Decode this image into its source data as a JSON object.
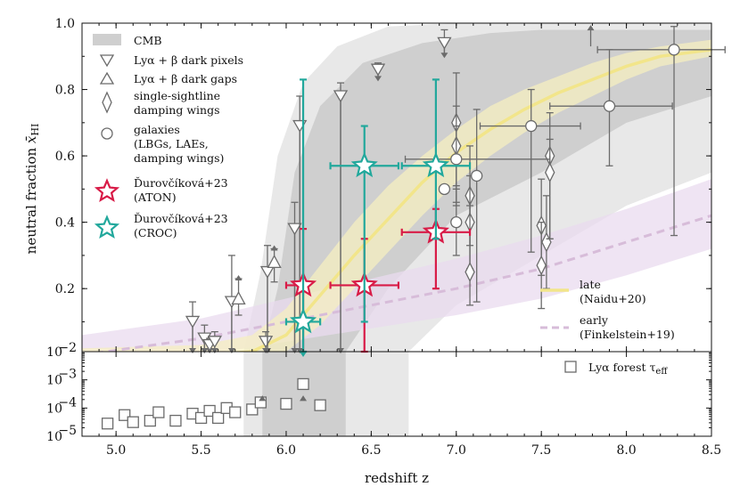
{
  "chart_data": {
    "type": "scatter",
    "title": "",
    "xlabel": "redshift z",
    "ylabel_top": "neutral fraction x̄HI",
    "ylabel_top_main": "neutral fraction ",
    "ylabel_top_sym": "x̄",
    "ylabel_top_sub": "HI",
    "xlim": [
      4.8,
      8.5
    ],
    "top_ylim": [
      0.01,
      1.0
    ],
    "bottom_ylim_log10": [
      -5,
      -2
    ],
    "x_ticks": [
      5.0,
      5.5,
      6.0,
      6.5,
      7.0,
      7.5,
      8.0,
      8.5
    ],
    "x_tick_labels": [
      "5.0",
      "5.5",
      "6.0",
      "6.5",
      "7.0",
      "7.5",
      "8.0",
      "8.5"
    ],
    "top_y_ticks": [
      0.01,
      0.2,
      0.4,
      0.6,
      0.8,
      1.0
    ],
    "top_y_tick_labels": [
      "10",
      "0.2",
      "0.4",
      "0.6",
      "0.8",
      "1.0"
    ],
    "top_y_tick_exps": [
      "−2",
      "",
      "",
      "",
      "",
      ""
    ],
    "bottom_y_ticks": [
      -3,
      -4,
      -5
    ],
    "bottom_y_tick_labels": [
      "10",
      "10",
      "10"
    ],
    "bottom_y_tick_exps": [
      "−3",
      "−4",
      "−5"
    ],
    "colors": {
      "cmb_outer": "#e8e8e8",
      "cmb_inner": "#cfcfcf",
      "data_grey": "#6b6b6b",
      "aton": "#d81b47",
      "croc": "#22a89c",
      "late_line": "#f2e58a",
      "late_band": "#f5efc0",
      "early_line": "#d7bcd9",
      "early_band": "#eadbef"
    },
    "legend": {
      "cmb": "CMB",
      "dark_pixels": "Lyα + β dark pixels",
      "dark_gaps": "Lyα + β dark gaps",
      "sightline_1": "single-sightline",
      "sightline_2": "damping wings",
      "galaxies_1": "galaxies",
      "galaxies_2": "(LBGs, LAEs,",
      "galaxies_3": "damping wings)",
      "aton_1": "Ďurovčíková+23",
      "aton_2": "(ATON)",
      "croc_1": "Ďurovčíková+23",
      "croc_2": "(CROC)",
      "late_1": "late",
      "late_2": "(Naidu+20)",
      "early_1": "early",
      "early_2": "(Finkelstein+19)",
      "forest_main": "Lyα forest τ",
      "forest_sub": "eff"
    },
    "cmb_bands": {
      "outer_x": [
        5.75,
        6.72
      ],
      "inner_x": [
        5.86,
        6.35
      ]
    },
    "models": {
      "late": {
        "x": [
          4.8,
          5.5,
          5.8,
          6.0,
          6.2,
          6.4,
          6.6,
          6.8,
          7.0,
          7.2,
          7.4,
          7.6,
          7.8,
          8.0,
          8.2,
          8.5
        ],
        "y": [
          0.0,
          0.0,
          0.01,
          0.06,
          0.18,
          0.3,
          0.41,
          0.52,
          0.61,
          0.68,
          0.74,
          0.79,
          0.83,
          0.87,
          0.9,
          0.92
        ],
        "band_low": [
          0.0,
          0.0,
          0.0,
          0.01,
          0.09,
          0.2,
          0.31,
          0.42,
          0.52,
          0.6,
          0.67,
          0.73,
          0.78,
          0.83,
          0.87,
          0.9
        ],
        "band_high": [
          0.02,
          0.03,
          0.06,
          0.14,
          0.27,
          0.4,
          0.51,
          0.6,
          0.68,
          0.75,
          0.8,
          0.84,
          0.88,
          0.91,
          0.93,
          0.95
        ]
      },
      "early": {
        "x": [
          4.8,
          5.5,
          6.0,
          6.5,
          7.0,
          7.5,
          8.0,
          8.5
        ],
        "y": [
          0.0,
          0.05,
          0.1,
          0.15,
          0.2,
          0.26,
          0.34,
          0.42
        ],
        "band_low": [
          0.0,
          0.0,
          0.04,
          0.08,
          0.12,
          0.17,
          0.24,
          0.32
        ],
        "band_high": [
          0.06,
          0.11,
          0.17,
          0.23,
          0.29,
          0.36,
          0.44,
          0.53
        ]
      }
    },
    "series": [
      {
        "name": "dark pixels",
        "marker": "triangle-down",
        "points": [
          {
            "x": 5.45,
            "y": 0.1,
            "yerr": [
              0.09,
              0.06
            ],
            "upper_limit": true
          },
          {
            "x": 5.52,
            "y": 0.05,
            "yerr": [
              0.04,
              0.04
            ],
            "upper_limit": true
          },
          {
            "x": 5.55,
            "y": 0.03,
            "yerr": [
              0.02,
              0.02
            ],
            "upper_limit": true
          },
          {
            "x": 5.58,
            "y": 0.04,
            "yerr": [
              0.03,
              0.03
            ],
            "upper_limit": true
          },
          {
            "x": 5.68,
            "y": 0.16,
            "yerr": [
              0.15,
              0.14
            ],
            "upper_limit": true
          },
          {
            "x": 5.88,
            "y": 0.04,
            "yerr": [
              0.03,
              0.03
            ],
            "upper_limit": true
          },
          {
            "x": 5.89,
            "y": 0.25,
            "yerr": [
              0.24,
              0.08
            ],
            "upper_limit": true
          },
          {
            "x": 6.05,
            "y": 0.38,
            "yerr": [
              0.37,
              0.08
            ],
            "upper_limit": true
          },
          {
            "x": 6.08,
            "y": 0.69,
            "yerr": [
              0.68,
              0.09
            ],
            "upper_limit": true
          },
          {
            "x": 6.32,
            "y": 0.78,
            "yerr": [
              0.77,
              0.04
            ],
            "upper_limit": true
          },
          {
            "x": 6.54,
            "y": 0.86,
            "yerr": [
              0.03,
              0.02
            ],
            "upper_limit": true
          },
          {
            "x": 6.93,
            "y": 0.94,
            "yerr": [
              0.04,
              0.04
            ],
            "upper_limit": true
          }
        ]
      },
      {
        "name": "dark gaps",
        "marker": "triangle-up",
        "points": [
          {
            "x": 5.72,
            "y": 0.17,
            "yerr": [
              0.05,
              0.06
            ],
            "lower_limit": true
          },
          {
            "x": 5.93,
            "y": 0.28,
            "yerr": [
              0.06,
              0.04
            ],
            "lower_limit": true
          }
        ]
      },
      {
        "name": "single-sightline damping wings",
        "marker": "diamond",
        "points": [
          {
            "x": 7.0,
            "y": 0.7,
            "yerr": [
              0.19,
              0.15
            ]
          },
          {
            "x": 7.0,
            "y": 0.63,
            "yerr": [
              0.17,
              0.12
            ]
          },
          {
            "x": 7.08,
            "y": 0.48,
            "yerr": [
              0.15,
              0.15
            ]
          },
          {
            "x": 7.08,
            "y": 0.4,
            "yerr": [
              0.14,
              0.14
            ]
          },
          {
            "x": 7.08,
            "y": 0.25,
            "yerr": [
              0.1,
              0.2
            ]
          },
          {
            "x": 7.5,
            "y": 0.39,
            "yerr": [
              0.15,
              0.14
            ]
          },
          {
            "x": 7.53,
            "y": 0.34,
            "yerr": [
              0.14,
              0.14
            ]
          },
          {
            "x": 7.5,
            "y": 0.27,
            "yerr": [
              0.13,
              0.13
            ]
          },
          {
            "x": 7.55,
            "y": 0.6,
            "yerr": [
              0.25,
              0.13
            ]
          },
          {
            "x": 7.55,
            "y": 0.55,
            "yerr": [
              0.2,
              0.1
            ]
          }
        ]
      },
      {
        "name": "galaxies (LBGs, LAEs, damping wings)",
        "marker": "circle",
        "points": [
          {
            "x": 6.93,
            "y": 0.5,
            "yerr": [
              0.0,
              0.0
            ],
            "upper_limit": true
          },
          {
            "x": 7.0,
            "y": 0.59,
            "xerr": [
              0.3,
              0.55
            ],
            "yerr": [
              0.14,
              0.1
            ]
          },
          {
            "x": 7.0,
            "y": 0.4,
            "yerr": [
              0.1,
              0.1
            ]
          },
          {
            "x": 7.12,
            "y": 0.54,
            "yerr": [
              0.38,
              0.2
            ]
          },
          {
            "x": 7.44,
            "y": 0.69,
            "xerr": [
              0.3,
              0.29
            ],
            "yerr": [
              0.38,
              0.11
            ]
          },
          {
            "x": 7.9,
            "y": 0.75,
            "xerr": [
              0.35,
              0.37
            ],
            "yerr": [
              0.18,
              0.17
            ]
          },
          {
            "x": 8.28,
            "y": 0.92,
            "xerr": [
              0.45,
              0.3
            ],
            "yerr": [
              0.56,
              0.07
            ]
          },
          {
            "x": 7.79,
            "y": 0.93,
            "lower_limit": true
          }
        ]
      },
      {
        "name": "Ďurovčíková+23 (ATON)",
        "marker": "star",
        "color": "aton",
        "points": [
          {
            "x": 6.1,
            "y": 0.21,
            "xerr": [
              0.1,
              0.0
            ],
            "yerr": [
              0.2,
              0.17
            ]
          },
          {
            "x": 6.46,
            "y": 0.21,
            "xerr": [
              0.2,
              0.2
            ],
            "yerr": [
              0.2,
              0.14
            ]
          },
          {
            "x": 6.88,
            "y": 0.37,
            "xerr": [
              0.2,
              0.2
            ],
            "yerr": [
              0.17,
              0.07
            ]
          }
        ]
      },
      {
        "name": "Ďurovčíková+23 (CROC)",
        "marker": "star",
        "color": "croc",
        "points": [
          {
            "x": 6.1,
            "y": 0.1,
            "xerr": [
              0.1,
              0.1
            ],
            "yerr": [
              0.09,
              0.73
            ],
            "lower_arrow": true
          },
          {
            "x": 6.46,
            "y": 0.57,
            "xerr": [
              0.2,
              0.2
            ],
            "yerr": [
              0.47,
              0.12
            ]
          },
          {
            "x": 6.88,
            "y": 0.57,
            "xerr": [
              0.2,
              0.2
            ],
            "yerr": [
              0.22,
              0.26
            ]
          }
        ]
      }
    ],
    "lya_forest": {
      "name": "Lyα forest τeff",
      "marker": "square",
      "x": [
        4.95,
        5.05,
        5.1,
        5.2,
        5.25,
        5.35,
        5.45,
        5.5,
        5.55,
        5.6,
        5.65,
        5.7,
        5.8,
        5.85,
        6.0,
        6.1,
        6.2
      ],
      "y_log10": [
        -4.55,
        -4.25,
        -4.5,
        -4.45,
        -4.15,
        -4.45,
        -4.2,
        -4.35,
        -4.1,
        -4.35,
        -4.0,
        -4.15,
        -4.05,
        -3.8,
        -3.85,
        -3.15,
        -3.9
      ],
      "lower_limits_x": [
        5.86,
        6.1
      ]
    }
  }
}
